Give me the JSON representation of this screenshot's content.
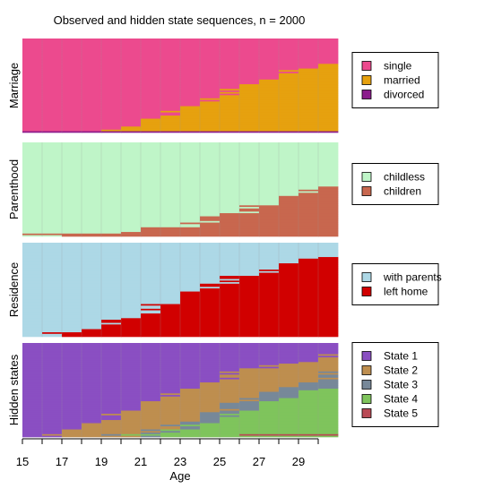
{
  "chart_data": {
    "type": "heatmap",
    "title": "Observed and hidden state sequences, n = 2000",
    "xlabel": "Age",
    "x_ticks": [
      15,
      17,
      19,
      21,
      23,
      25,
      27,
      29
    ],
    "ages": [
      15,
      16,
      17,
      18,
      19,
      20,
      21,
      22,
      23,
      24,
      25,
      26,
      27,
      28,
      29,
      30
    ],
    "panels": [
      {
        "name": "Marriage",
        "states": [
          {
            "label": "single",
            "color": "#EC4A8E"
          },
          {
            "label": "married",
            "color": "#E6A10F"
          },
          {
            "label": "divorced",
            "color": "#8B1C8C"
          }
        ],
        "proportions": [
          [
            1.0,
            0.0,
            0.0
          ],
          [
            1.0,
            0.0,
            0.0
          ],
          [
            0.99,
            0.01,
            0.0
          ],
          [
            0.98,
            0.02,
            0.0
          ],
          [
            0.95,
            0.05,
            0.0
          ],
          [
            0.91,
            0.09,
            0.0
          ],
          [
            0.86,
            0.14,
            0.0
          ],
          [
            0.79,
            0.21,
            0.0
          ],
          [
            0.72,
            0.28,
            0.0
          ],
          [
            0.64,
            0.36,
            0.0
          ],
          [
            0.56,
            0.43,
            0.01
          ],
          [
            0.48,
            0.51,
            0.01
          ],
          [
            0.41,
            0.58,
            0.01
          ],
          [
            0.35,
            0.64,
            0.01
          ],
          [
            0.3,
            0.68,
            0.02
          ],
          [
            0.26,
            0.72,
            0.02
          ]
        ]
      },
      {
        "name": "Parenthood",
        "states": [
          {
            "label": "childless",
            "color": "#BFF5C8"
          },
          {
            "label": "children",
            "color": "#C8674E"
          }
        ],
        "proportions": [
          [
            1.0,
            0.0
          ],
          [
            1.0,
            0.0
          ],
          [
            0.99,
            0.01
          ],
          [
            0.98,
            0.02
          ],
          [
            0.97,
            0.03
          ],
          [
            0.95,
            0.05
          ],
          [
            0.93,
            0.07
          ],
          [
            0.9,
            0.1
          ],
          [
            0.86,
            0.14
          ],
          [
            0.82,
            0.18
          ],
          [
            0.77,
            0.23
          ],
          [
            0.71,
            0.29
          ],
          [
            0.65,
            0.35
          ],
          [
            0.58,
            0.42
          ],
          [
            0.52,
            0.48
          ],
          [
            0.46,
            0.54
          ]
        ]
      },
      {
        "name": "Residence",
        "states": [
          {
            "label": "with parents",
            "color": "#ADD8E6"
          },
          {
            "label": "left home",
            "color": "#D10000"
          }
        ],
        "proportions": [
          [
            0.99,
            0.01
          ],
          [
            0.97,
            0.03
          ],
          [
            0.94,
            0.06
          ],
          [
            0.9,
            0.1
          ],
          [
            0.84,
            0.16
          ],
          [
            0.77,
            0.23
          ],
          [
            0.7,
            0.3
          ],
          [
            0.62,
            0.38
          ],
          [
            0.54,
            0.46
          ],
          [
            0.46,
            0.54
          ],
          [
            0.39,
            0.61
          ],
          [
            0.33,
            0.67
          ],
          [
            0.27,
            0.73
          ],
          [
            0.22,
            0.78
          ],
          [
            0.18,
            0.82
          ],
          [
            0.15,
            0.85
          ]
        ]
      },
      {
        "name": "Hidden states",
        "states": [
          {
            "label": "State 1",
            "color": "#8A4FC2"
          },
          {
            "label": "State 2",
            "color": "#BE8E4F"
          },
          {
            "label": "State 3",
            "color": "#778899"
          },
          {
            "label": "State 4",
            "color": "#7FC45C"
          },
          {
            "label": "State 5",
            "color": "#B94A55"
          }
        ],
        "proportions": [
          [
            0.99,
            0.01,
            0.0,
            0.0,
            0.0
          ],
          [
            0.96,
            0.04,
            0.0,
            0.0,
            0.0
          ],
          [
            0.92,
            0.08,
            0.0,
            0.0,
            0.0
          ],
          [
            0.86,
            0.14,
            0.0,
            0.0,
            0.0
          ],
          [
            0.79,
            0.19,
            0.01,
            0.01,
            0.0
          ],
          [
            0.72,
            0.24,
            0.02,
            0.02,
            0.0
          ],
          [
            0.64,
            0.29,
            0.03,
            0.04,
            0.0
          ],
          [
            0.56,
            0.32,
            0.05,
            0.07,
            0.0
          ],
          [
            0.48,
            0.34,
            0.07,
            0.1,
            0.01
          ],
          [
            0.41,
            0.34,
            0.09,
            0.15,
            0.01
          ],
          [
            0.34,
            0.33,
            0.11,
            0.21,
            0.01
          ],
          [
            0.28,
            0.31,
            0.12,
            0.27,
            0.02
          ],
          [
            0.23,
            0.28,
            0.13,
            0.34,
            0.02
          ],
          [
            0.19,
            0.25,
            0.13,
            0.41,
            0.02
          ],
          [
            0.16,
            0.22,
            0.12,
            0.47,
            0.03
          ],
          [
            0.14,
            0.2,
            0.11,
            0.52,
            0.03
          ]
        ]
      }
    ]
  }
}
